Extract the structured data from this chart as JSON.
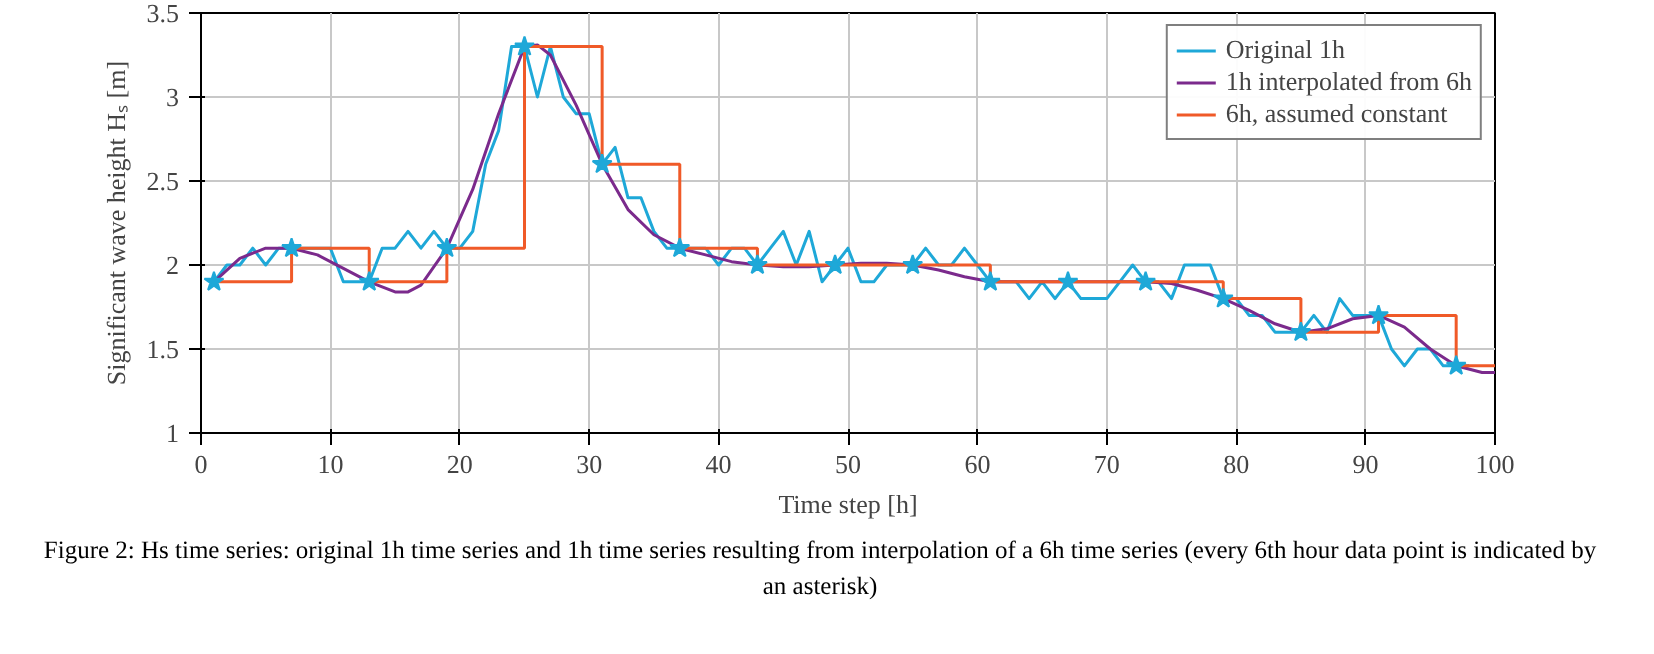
{
  "chart_data": {
    "type": "line",
    "xlabel": "Time step [h]",
    "ylabel": "Significant wave height Hₛ [m]",
    "xlim": [
      0,
      100
    ],
    "ylim": [
      1,
      3.5
    ],
    "xticks": [
      0,
      10,
      20,
      30,
      40,
      50,
      60,
      70,
      80,
      90,
      100
    ],
    "yticks": [
      1,
      1.5,
      2,
      2.5,
      3,
      3.5
    ],
    "grid": true,
    "legend": "top right",
    "series": [
      {
        "name": "Original 1h",
        "color": "#1ea8d8",
        "x": [
          1,
          2,
          3,
          4,
          5,
          6,
          7,
          8,
          9,
          10,
          11,
          12,
          13,
          14,
          15,
          16,
          17,
          18,
          19,
          20,
          21,
          22,
          23,
          24,
          25,
          26,
          27,
          28,
          29,
          30,
          31,
          32,
          33,
          34,
          35,
          36,
          37,
          38,
          39,
          40,
          41,
          42,
          43,
          44,
          45,
          46,
          47,
          48,
          49,
          50,
          51,
          52,
          53,
          54,
          55,
          56,
          57,
          58,
          59,
          60,
          61,
          62,
          63,
          64,
          65,
          66,
          67,
          68,
          69,
          70,
          71,
          72,
          73,
          74,
          75,
          76,
          77,
          78,
          79,
          80,
          81,
          82,
          83,
          84,
          85,
          86,
          87,
          88,
          89,
          90,
          91,
          92,
          93,
          94,
          95,
          96,
          97,
          98
        ],
        "values": [
          1.9,
          2.0,
          2.0,
          2.1,
          2.0,
          2.1,
          2.1,
          2.1,
          2.1,
          2.1,
          1.9,
          1.9,
          1.9,
          2.1,
          2.1,
          2.2,
          2.1,
          2.2,
          2.1,
          2.1,
          2.2,
          2.6,
          2.8,
          3.3,
          3.3,
          3.0,
          3.3,
          3.0,
          2.9,
          2.9,
          2.6,
          2.7,
          2.4,
          2.4,
          2.2,
          2.1,
          2.1,
          2.1,
          2.1,
          2.0,
          2.1,
          2.1,
          2.0,
          2.1,
          2.2,
          2.0,
          2.2,
          1.9,
          2.0,
          2.1,
          1.9,
          1.9,
          2.0,
          2.0,
          2.0,
          2.1,
          2.0,
          2.0,
          2.1,
          2.0,
          1.9,
          1.9,
          1.9,
          1.8,
          1.9,
          1.8,
          1.9,
          1.8,
          1.8,
          1.8,
          1.9,
          2.0,
          1.9,
          1.9,
          1.8,
          2.0,
          2.0,
          2.0,
          1.8,
          1.8,
          1.7,
          1.7,
          1.6,
          1.6,
          1.6,
          1.7,
          1.6,
          1.8,
          1.7,
          1.7,
          1.7,
          1.5,
          1.4,
          1.5,
          1.5,
          1.4,
          1.4,
          1.4
        ]
      },
      {
        "name": "1h interpolated from 6h",
        "color": "#7b2a8c",
        "x": [
          1,
          3,
          5,
          7,
          9,
          11,
          13,
          15,
          16,
          17,
          19,
          21,
          23,
          25,
          26,
          27,
          29,
          31,
          33,
          35,
          37,
          39,
          41,
          43,
          45,
          47,
          49,
          51,
          53,
          55,
          57,
          59,
          61,
          63,
          65,
          67,
          69,
          71,
          73,
          75,
          77,
          79,
          81,
          83,
          85,
          87,
          89,
          91,
          93,
          95,
          97,
          99,
          100
        ],
        "values": [
          1.9,
          2.04,
          2.1,
          2.1,
          2.06,
          1.98,
          1.9,
          1.84,
          1.84,
          1.88,
          2.1,
          2.45,
          2.9,
          3.3,
          3.31,
          3.25,
          2.95,
          2.6,
          2.33,
          2.18,
          2.1,
          2.06,
          2.02,
          2.0,
          1.99,
          1.99,
          2.0,
          2.01,
          2.01,
          2.0,
          1.97,
          1.93,
          1.9,
          1.9,
          1.9,
          1.9,
          1.9,
          1.9,
          1.9,
          1.89,
          1.85,
          1.8,
          1.73,
          1.65,
          1.6,
          1.62,
          1.68,
          1.7,
          1.63,
          1.5,
          1.4,
          1.36,
          1.36
        ]
      },
      {
        "name": "6h, assumed constant",
        "color": "#f05a28",
        "type": "step",
        "x": [
          1,
          7,
          13,
          19,
          25,
          31,
          37,
          43,
          49,
          55,
          61,
          67,
          73,
          79,
          85,
          91,
          97,
          100
        ],
        "values": [
          1.9,
          2.1,
          1.9,
          2.1,
          3.3,
          2.6,
          2.1,
          2.0,
          2.0,
          2.0,
          1.9,
          1.9,
          1.9,
          1.8,
          1.6,
          1.7,
          1.4,
          1.4
        ]
      },
      {
        "color": "#1ea8d8",
        "type": "scatter",
        "marker": "star",
        "x": [
          1,
          7,
          13,
          19,
          25,
          31,
          37,
          43,
          49,
          55,
          61,
          67,
          73,
          79,
          85,
          91,
          97
        ],
        "values": [
          1.9,
          2.1,
          1.9,
          2.1,
          3.3,
          2.6,
          2.1,
          2.0,
          2.0,
          2.0,
          1.9,
          1.9,
          1.9,
          1.8,
          1.6,
          1.7,
          1.4
        ]
      }
    ],
    "annotations": [
      "Figure 2: Hs time series: original 1h time series and 1h time series resulting from interpolation of a 6h time series (every 6th hour data  point is indicated by an asterisk)"
    ]
  }
}
